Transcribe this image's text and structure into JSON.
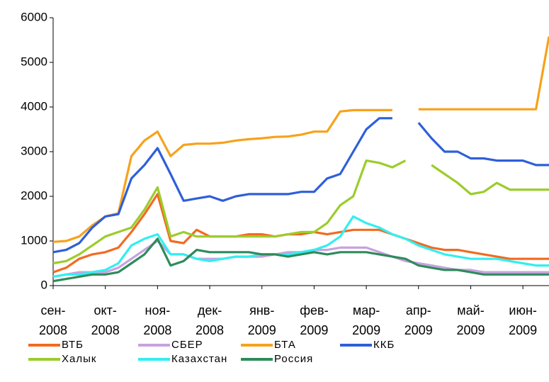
{
  "chart_data": {
    "type": "line",
    "categories": [
      "сен-\n2008",
      null,
      null,
      null,
      "окт-\n2008",
      null,
      null,
      null,
      "ноя-\n2008",
      null,
      null,
      null,
      "дек-\n2008",
      null,
      null,
      null,
      "янв-\n2009",
      null,
      null,
      null,
      "фев-\n2009",
      null,
      null,
      null,
      "мар-\n2009",
      null,
      null,
      null,
      "апр-\n2009",
      null,
      null,
      null,
      "май-\n2009",
      null,
      null,
      null,
      "июн-\n2009",
      null,
      null
    ],
    "ylim": [
      0,
      6000
    ],
    "yticks": [
      0,
      1000,
      2000,
      3000,
      4000,
      5000,
      6000
    ],
    "grid": false,
    "series": [
      {
        "name": "ВТБ",
        "color": "#f26a21",
        "values": [
          300,
          400,
          600,
          700,
          750,
          850,
          1200,
          1600,
          2050,
          1000,
          950,
          1250,
          1100,
          1100,
          1100,
          1150,
          1150,
          1100,
          1150,
          1150,
          1200,
          1150,
          1200,
          1250,
          1250,
          1250,
          1150,
          1050,
          950,
          850,
          800,
          800,
          750,
          700,
          650,
          600,
          600,
          600,
          600
        ]
      },
      {
        "name": "СБЕР",
        "color": "#c8a2e0",
        "values": [
          200,
          250,
          300,
          300,
          300,
          400,
          600,
          800,
          1000,
          700,
          700,
          600,
          600,
          600,
          650,
          650,
          650,
          700,
          750,
          750,
          800,
          800,
          850,
          850,
          850,
          750,
          650,
          550,
          500,
          450,
          400,
          350,
          350,
          300,
          300,
          300,
          300,
          300,
          300
        ]
      },
      {
        "name": "БТА",
        "color": "#f7a21b",
        "values": [
          980,
          1000,
          1100,
          1350,
          1550,
          1620,
          2900,
          3250,
          3450,
          2900,
          3150,
          3180,
          3180,
          3200,
          3250,
          3280,
          3300,
          3330,
          3340,
          3380,
          3450,
          3450,
          3900,
          3930,
          3930,
          3930,
          3930,
          null,
          3950,
          3950,
          3950,
          3950,
          3950,
          3950,
          3950,
          3950,
          3950,
          3950,
          5580
        ]
      },
      {
        "name": "ККБ",
        "color": "#2f5fd8",
        "values": [
          750,
          800,
          950,
          1300,
          1550,
          1600,
          2400,
          2700,
          3080,
          2500,
          1900,
          1950,
          2000,
          1900,
          2000,
          2050,
          2050,
          2050,
          2050,
          2100,
          2100,
          2400,
          2500,
          3000,
          3500,
          3750,
          3750,
          null,
          3650,
          3300,
          3000,
          3000,
          2850,
          2850,
          2800,
          2800,
          2800,
          2700,
          2700
        ]
      },
      {
        "name": "Халык",
        "color": "#9ccc2c",
        "values": [
          500,
          550,
          700,
          900,
          1100,
          1200,
          1300,
          1700,
          2200,
          1100,
          1200,
          1100,
          1100,
          1100,
          1100,
          1100,
          1100,
          1100,
          1150,
          1200,
          1200,
          1400,
          1800,
          2000,
          2800,
          2750,
          2650,
          2800,
          null,
          2700,
          2500,
          2300,
          2050,
          2100,
          2300,
          2150,
          2150,
          2150,
          2150
        ]
      },
      {
        "name": "Казахстан",
        "color": "#33eef0",
        "values": [
          200,
          250,
          250,
          300,
          350,
          500,
          900,
          1050,
          1150,
          700,
          700,
          600,
          550,
          600,
          650,
          650,
          700,
          700,
          700,
          750,
          800,
          900,
          1100,
          1550,
          1400,
          1300,
          1150,
          1050,
          900,
          800,
          700,
          650,
          600,
          600,
          600,
          550,
          500,
          450,
          450
        ]
      },
      {
        "name": "Россия",
        "color": "#2e8b5a",
        "values": [
          100,
          150,
          200,
          250,
          250,
          300,
          500,
          700,
          1050,
          450,
          550,
          800,
          750,
          750,
          750,
          750,
          700,
          700,
          650,
          700,
          750,
          700,
          750,
          750,
          750,
          700,
          650,
          600,
          450,
          400,
          350,
          350,
          300,
          250,
          250,
          250,
          250,
          250,
          250
        ]
      }
    ]
  }
}
